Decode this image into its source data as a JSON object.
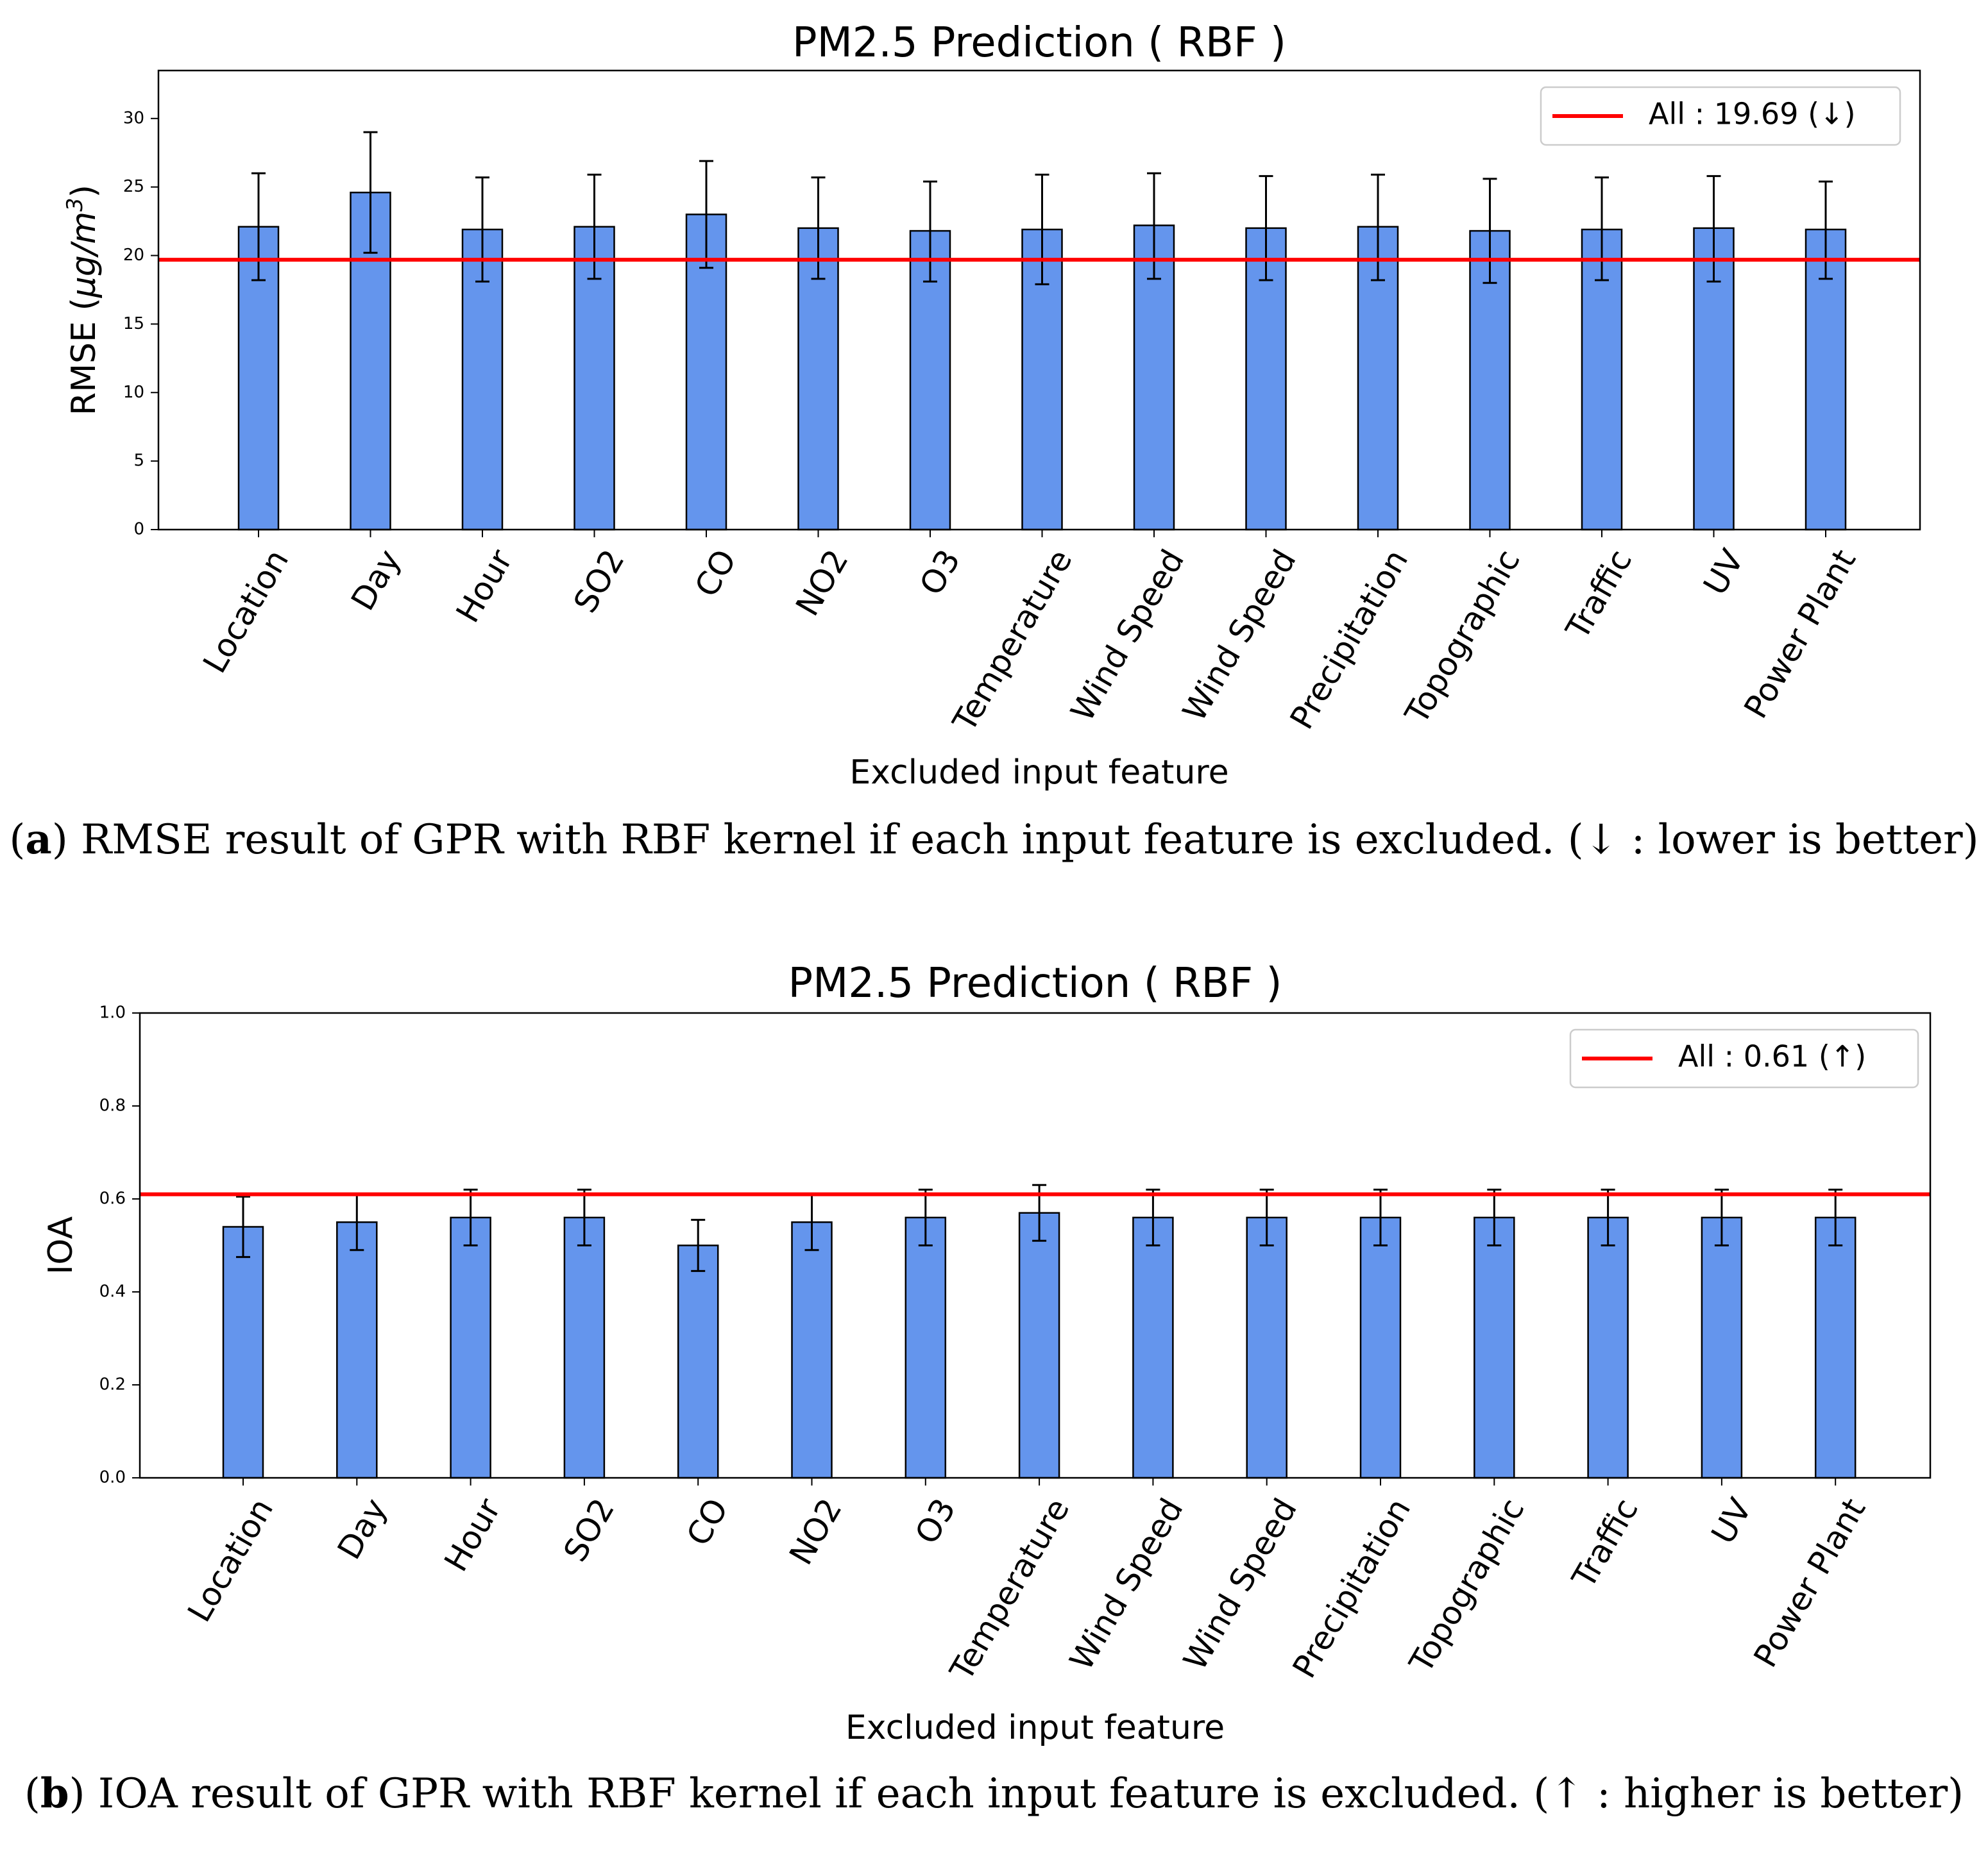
{
  "chart_data": [
    {
      "type": "bar",
      "title": "PM2.5 Prediction ( RBF )",
      "xlabel": "Excluded input feature",
      "ylabel_main": "RMSE (",
      "ylabel_unit": "μg/m",
      "ylabel_sup": "3",
      "ylabel_close": ")",
      "ylim": [
        0,
        33.5
      ],
      "yticks": [
        0,
        5,
        10,
        15,
        20,
        25,
        30
      ],
      "ytick_labels": [
        "0",
        "5",
        "10",
        "15",
        "20",
        "25",
        "30"
      ],
      "categories": [
        "Location",
        "Day",
        "Hour",
        "SO2",
        "CO",
        "NO2",
        "O3",
        "Temperature",
        "Wind Speed",
        "Wind Speed",
        "Precipitation",
        "Topographic",
        "Traffic",
        "UV",
        "Power Plant"
      ],
      "values": [
        22.1,
        24.6,
        21.9,
        22.1,
        23.0,
        22.0,
        21.8,
        21.9,
        22.2,
        22.0,
        22.1,
        21.8,
        21.9,
        22.0,
        21.9
      ],
      "error_low": [
        18.2,
        20.2,
        18.1,
        18.3,
        19.1,
        18.3,
        18.1,
        17.9,
        18.3,
        18.2,
        18.2,
        18.0,
        18.2,
        18.1,
        18.3
      ],
      "error_high": [
        26.0,
        29.0,
        25.7,
        25.9,
        26.9,
        25.7,
        25.4,
        25.9,
        26.0,
        25.8,
        25.9,
        25.6,
        25.7,
        25.8,
        25.4
      ],
      "reference_line": {
        "value": 19.69,
        "label": "All : 19.69 (↓)",
        "color": "#ff0000"
      },
      "bar_color": "#6495ed",
      "legend": "top-right",
      "grid": false
    },
    {
      "type": "bar",
      "title": "PM2.5 Prediction ( RBF )",
      "xlabel": "Excluded input feature",
      "ylabel": "IOA",
      "ylim": [
        0,
        1.0
      ],
      "yticks": [
        0,
        0.2,
        0.4,
        0.6,
        0.8,
        1.0
      ],
      "ytick_labels": [
        "0.0",
        "0.2",
        "0.4",
        "0.6",
        "0.8",
        "1.0"
      ],
      "categories": [
        "Location",
        "Day",
        "Hour",
        "SO2",
        "CO",
        "NO2",
        "O3",
        "Temperature",
        "Wind Speed",
        "Wind Speed",
        "Precipitation",
        "Topographic",
        "Traffic",
        "UV",
        "Power Plant"
      ],
      "values": [
        0.54,
        0.55,
        0.56,
        0.56,
        0.5,
        0.55,
        0.56,
        0.57,
        0.56,
        0.56,
        0.56,
        0.56,
        0.56,
        0.56,
        0.56
      ],
      "error_low": [
        0.475,
        0.49,
        0.5,
        0.5,
        0.445,
        0.49,
        0.5,
        0.51,
        0.5,
        0.5,
        0.5,
        0.5,
        0.5,
        0.5,
        0.5
      ],
      "error_high": [
        0.605,
        0.61,
        0.62,
        0.62,
        0.555,
        0.61,
        0.62,
        0.63,
        0.62,
        0.62,
        0.62,
        0.62,
        0.62,
        0.62,
        0.62
      ],
      "reference_line": {
        "value": 0.61,
        "label": "All : 0.61 (↑)",
        "color": "#ff0000"
      },
      "bar_color": "#6495ed",
      "legend": "top-right",
      "grid": false
    }
  ],
  "captions": {
    "a": {
      "tag": "a",
      "text": "RMSE result of GPR with RBF kernel if each input feature is excluded. (↓ : lower is better)"
    },
    "b": {
      "tag": "b",
      "text": "IOA result of GPR with RBF kernel if each input feature is excluded. (↑ : higher is better)"
    }
  }
}
